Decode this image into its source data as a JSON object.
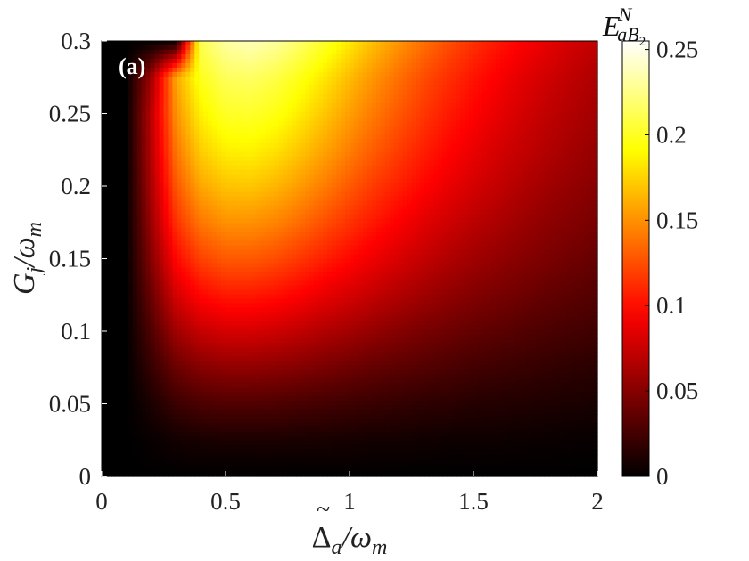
{
  "panel_label": "(a)",
  "colorbar_title": {
    "main": "E",
    "sup": "N",
    "sub": "aB",
    "subsub": "2"
  },
  "colors": {
    "colormap": "hot",
    "low": "#000000",
    "mid": "#ff0000",
    "high": "#ffffff"
  },
  "chart_data": {
    "type": "heatmap",
    "xlabel": {
      "main": "Δ",
      "accent": "~",
      "sub": "a",
      "rest": "/ω",
      "restsub": "m"
    },
    "ylabel": {
      "main": "G",
      "sub": "j",
      "rest": "/ω",
      "restsub": "m"
    },
    "xlim": [
      0,
      2
    ],
    "ylim": [
      0,
      0.3
    ],
    "clim": [
      0,
      0.255
    ],
    "x_ticks": [
      0,
      0.5,
      1,
      1.5,
      2
    ],
    "x_tick_labels": [
      "0",
      "0.5",
      "1",
      "1.5",
      "2"
    ],
    "y_ticks": [
      0,
      0.05,
      0.1,
      0.15,
      0.2,
      0.25,
      0.3
    ],
    "y_tick_labels": [
      "0",
      "0.05",
      "0.1",
      "0.15",
      "0.2",
      "0.25",
      "0.3"
    ],
    "colorbar_ticks": [
      0,
      0.05,
      0.1,
      0.15,
      0.2,
      0.25
    ],
    "colorbar_tick_labels": [
      "0",
      "0.05",
      "0.1",
      "0.15",
      "0.2",
      "0.25"
    ],
    "x": [
      0,
      0.1,
      0.2,
      0.3,
      0.4,
      0.5,
      0.6,
      0.7,
      0.8,
      0.9,
      1.0,
      1.1,
      1.2,
      1.3,
      1.4,
      1.5,
      1.6,
      1.7,
      1.8,
      1.9,
      2.0
    ],
    "y": [
      0,
      0.025,
      0.05,
      0.075,
      0.1,
      0.125,
      0.15,
      0.175,
      0.2,
      0.225,
      0.25,
      0.275,
      0.3
    ],
    "z": [
      [
        0,
        0,
        0,
        0,
        0,
        0,
        0,
        0,
        0,
        0,
        0,
        0,
        0,
        0,
        0,
        0,
        0,
        0,
        0,
        0,
        0
      ],
      [
        0,
        0,
        0.003,
        0.007,
        0.009,
        0.01,
        0.01,
        0.01,
        0.009,
        0.009,
        0.008,
        0.007,
        0.007,
        0.006,
        0.005,
        0.005,
        0.005,
        0.004,
        0.004,
        0.003,
        0.003
      ],
      [
        0,
        0,
        0.01,
        0.022,
        0.028,
        0.03,
        0.03,
        0.029,
        0.027,
        0.025,
        0.023,
        0.021,
        0.019,
        0.017,
        0.016,
        0.014,
        0.013,
        0.012,
        0.011,
        0.01,
        0.009
      ],
      [
        0,
        0,
        0.02,
        0.04,
        0.05,
        0.054,
        0.054,
        0.052,
        0.049,
        0.045,
        0.041,
        0.037,
        0.034,
        0.031,
        0.028,
        0.025,
        0.023,
        0.021,
        0.019,
        0.017,
        0.016
      ],
      [
        0,
        0,
        0.03,
        0.06,
        0.074,
        0.08,
        0.08,
        0.077,
        0.072,
        0.066,
        0.061,
        0.055,
        0.05,
        0.045,
        0.041,
        0.037,
        0.034,
        0.031,
        0.028,
        0.026,
        0.024
      ],
      [
        0,
        0,
        0.04,
        0.08,
        0.098,
        0.105,
        0.105,
        0.101,
        0.095,
        0.087,
        0.08,
        0.073,
        0.066,
        0.06,
        0.054,
        0.049,
        0.045,
        0.041,
        0.037,
        0.034,
        0.031
      ],
      [
        0,
        0,
        0.05,
        0.098,
        0.12,
        0.129,
        0.129,
        0.124,
        0.116,
        0.107,
        0.098,
        0.089,
        0.081,
        0.073,
        0.066,
        0.06,
        0.055,
        0.05,
        0.046,
        0.042,
        0.038
      ],
      [
        0,
        0,
        0.058,
        0.114,
        0.14,
        0.15,
        0.15,
        0.145,
        0.136,
        0.125,
        0.114,
        0.104,
        0.094,
        0.085,
        0.077,
        0.07,
        0.064,
        0.058,
        0.053,
        0.049,
        0.045
      ],
      [
        0,
        0,
        0.064,
        0.128,
        0.158,
        0.169,
        0.17,
        0.164,
        0.154,
        0.142,
        0.129,
        0.117,
        0.107,
        0.097,
        0.088,
        0.08,
        0.073,
        0.066,
        0.06,
        0.055,
        0.051
      ],
      [
        0,
        0,
        0.068,
        0.14,
        0.173,
        0.186,
        0.187,
        0.181,
        0.17,
        0.157,
        0.143,
        0.13,
        0.118,
        0.107,
        0.097,
        0.088,
        0.08,
        0.073,
        0.067,
        0.061,
        0.056
      ],
      [
        0,
        0,
        0.07,
        0.15,
        0.186,
        0.201,
        0.202,
        0.196,
        0.184,
        0.17,
        0.155,
        0.141,
        0.128,
        0.116,
        0.105,
        0.096,
        0.087,
        0.079,
        0.072,
        0.066,
        0.061
      ],
      [
        0,
        0,
        0.06,
        0.158,
        0.198,
        0.214,
        0.216,
        0.209,
        0.197,
        0.182,
        0.166,
        0.151,
        0.137,
        0.124,
        0.113,
        0.103,
        0.094,
        0.085,
        0.078,
        0.071,
        0.065
      ],
      [
        0,
        0,
        0,
        0,
        0.212,
        0.232,
        0.238,
        0.231,
        0.218,
        0.202,
        0.184,
        0.167,
        0.152,
        0.138,
        0.125,
        0.114,
        0.104,
        0.095,
        0.087,
        0.079,
        0.072
      ]
    ]
  }
}
